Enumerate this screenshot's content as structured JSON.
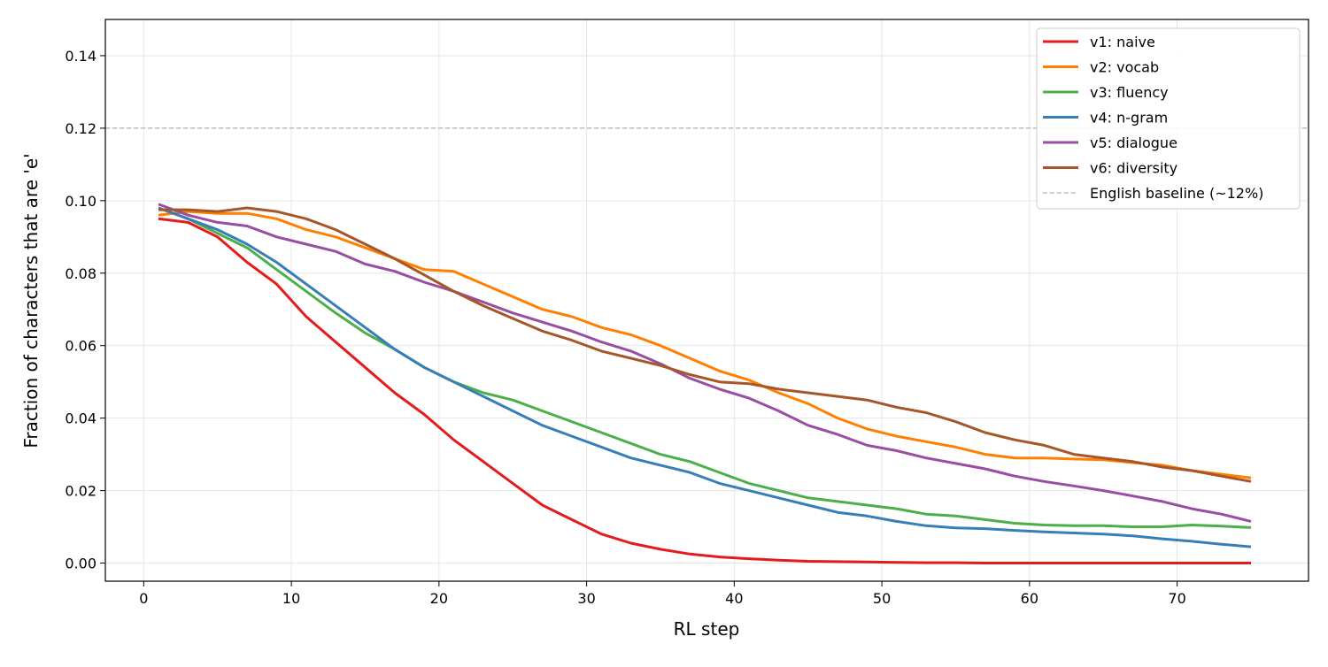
{
  "chart_data": {
    "type": "line",
    "title": "",
    "xlabel": "RL step",
    "ylabel": "Fraction of characters that are 'e'",
    "xlim": [
      -2.6,
      78.9
    ],
    "ylim": [
      -0.005,
      0.15
    ],
    "xticks": [
      "0",
      "10",
      "20",
      "30",
      "40",
      "50",
      "60",
      "70"
    ],
    "yticks": [
      "0.00",
      "0.02",
      "0.04",
      "0.06",
      "0.08",
      "0.10",
      "0.12",
      "0.14"
    ],
    "grid": true,
    "legend_position": "top-right",
    "x": [
      1,
      3,
      5,
      7,
      9,
      11,
      13,
      15,
      17,
      19,
      21,
      23,
      25,
      27,
      29,
      31,
      33,
      35,
      37,
      39,
      41,
      43,
      45,
      47,
      49,
      51,
      53,
      55,
      57,
      59,
      61,
      63,
      65,
      67,
      69,
      71,
      73,
      75
    ],
    "series": [
      {
        "name": "v1: naive",
        "color": "#e41a1c",
        "values": [
          0.095,
          0.094,
          0.09,
          0.083,
          0.077,
          0.068,
          0.061,
          0.054,
          0.047,
          0.041,
          0.034,
          0.028,
          0.022,
          0.016,
          0.012,
          0.008,
          0.0055,
          0.0038,
          0.0025,
          0.0017,
          0.0012,
          0.0008,
          0.0005,
          0.0004,
          0.0003,
          0.0002,
          0.0001,
          0.0001,
          0.0,
          0.0,
          0.0,
          0.0,
          0.0,
          0.0,
          0.0,
          0.0,
          0.0,
          0.0
        ]
      },
      {
        "name": "v2: vocab",
        "color": "#ff7f00",
        "values": [
          0.096,
          0.097,
          0.0965,
          0.0965,
          0.095,
          0.092,
          0.09,
          0.087,
          0.084,
          0.081,
          0.0805,
          0.077,
          0.0735,
          0.07,
          0.068,
          0.065,
          0.063,
          0.06,
          0.0565,
          0.053,
          0.0505,
          0.047,
          0.044,
          0.04,
          0.037,
          0.035,
          0.0335,
          0.032,
          0.03,
          0.029,
          0.029,
          0.0287,
          0.0285,
          0.0277,
          0.027,
          0.0255,
          0.0245,
          0.0235
        ]
      },
      {
        "name": "v3: fluency",
        "color": "#4daf4a",
        "values": [
          0.098,
          0.095,
          0.091,
          0.087,
          0.081,
          0.075,
          0.069,
          0.0635,
          0.059,
          0.054,
          0.05,
          0.047,
          0.045,
          0.042,
          0.039,
          0.036,
          0.033,
          0.03,
          0.028,
          0.025,
          0.022,
          0.02,
          0.018,
          0.017,
          0.016,
          0.015,
          0.0135,
          0.013,
          0.012,
          0.011,
          0.0105,
          0.0103,
          0.0103,
          0.01,
          0.01,
          0.0105,
          0.0102,
          0.0098
        ]
      },
      {
        "name": "v4: n-gram",
        "color": "#377eb8",
        "values": [
          0.098,
          0.095,
          0.092,
          0.088,
          0.083,
          0.077,
          0.071,
          0.065,
          0.059,
          0.054,
          0.05,
          0.046,
          0.042,
          0.038,
          0.035,
          0.032,
          0.029,
          0.027,
          0.025,
          0.022,
          0.02,
          0.018,
          0.016,
          0.014,
          0.013,
          0.0115,
          0.0103,
          0.0097,
          0.0095,
          0.009,
          0.0086,
          0.0083,
          0.008,
          0.0075,
          0.0067,
          0.006,
          0.0052,
          0.0045
        ]
      },
      {
        "name": "v5: dialogue",
        "color": "#984ea3",
        "values": [
          0.099,
          0.096,
          0.094,
          0.093,
          0.09,
          0.088,
          0.086,
          0.0825,
          0.0805,
          0.0775,
          0.075,
          0.072,
          0.069,
          0.0665,
          0.064,
          0.061,
          0.0585,
          0.055,
          0.051,
          0.048,
          0.0455,
          0.042,
          0.038,
          0.0355,
          0.0325,
          0.031,
          0.029,
          0.0275,
          0.026,
          0.024,
          0.0225,
          0.0213,
          0.02,
          0.0185,
          0.017,
          0.015,
          0.0135,
          0.0115
        ]
      },
      {
        "name": "v6: diversity",
        "color": "#a65628",
        "values": [
          0.0975,
          0.0975,
          0.097,
          0.098,
          0.097,
          0.095,
          0.092,
          0.088,
          0.084,
          0.0795,
          0.075,
          0.071,
          0.0675,
          0.064,
          0.0615,
          0.0585,
          0.0565,
          0.0545,
          0.052,
          0.05,
          0.0495,
          0.048,
          0.047,
          0.046,
          0.045,
          0.043,
          0.0415,
          0.039,
          0.036,
          0.034,
          0.0325,
          0.03,
          0.029,
          0.028,
          0.0265,
          0.0255,
          0.024,
          0.0225
        ]
      }
    ],
    "reference_line": {
      "name": "English baseline (~12%)",
      "y": 0.12,
      "color": "#b0b0b0",
      "style": "dashed"
    }
  }
}
